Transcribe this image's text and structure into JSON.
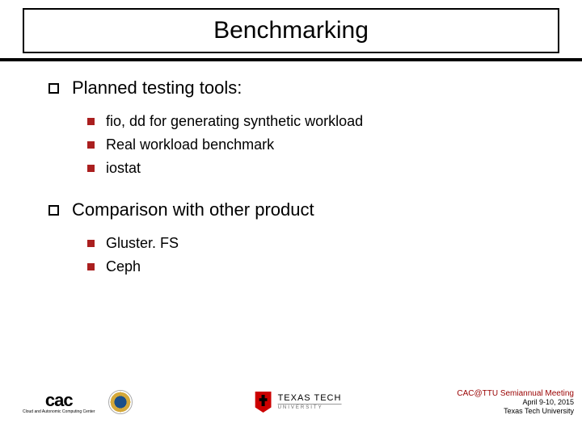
{
  "title": "Benchmarking",
  "accent_color": "#990000",
  "bullet_fill": "#aa1f1f",
  "sections": [
    {
      "title": "Planned testing tools:",
      "items": [
        "fio, dd for generating synthetic workload",
        "Real workload benchmark",
        "iostat"
      ]
    },
    {
      "title": "Comparison with other product",
      "items": [
        "Gluster. FS",
        "Ceph"
      ]
    }
  ],
  "footer": {
    "cac_logo": "cac",
    "cac_sub": "Cloud and Autonomic Computing Center",
    "ttu_main": "TEXAS TECH",
    "ttu_sub": "UNIVERSITY",
    "meeting": "CAC@TTU Semiannual Meeting",
    "date": "April 9-10, 2015",
    "location": "Texas Tech University"
  }
}
